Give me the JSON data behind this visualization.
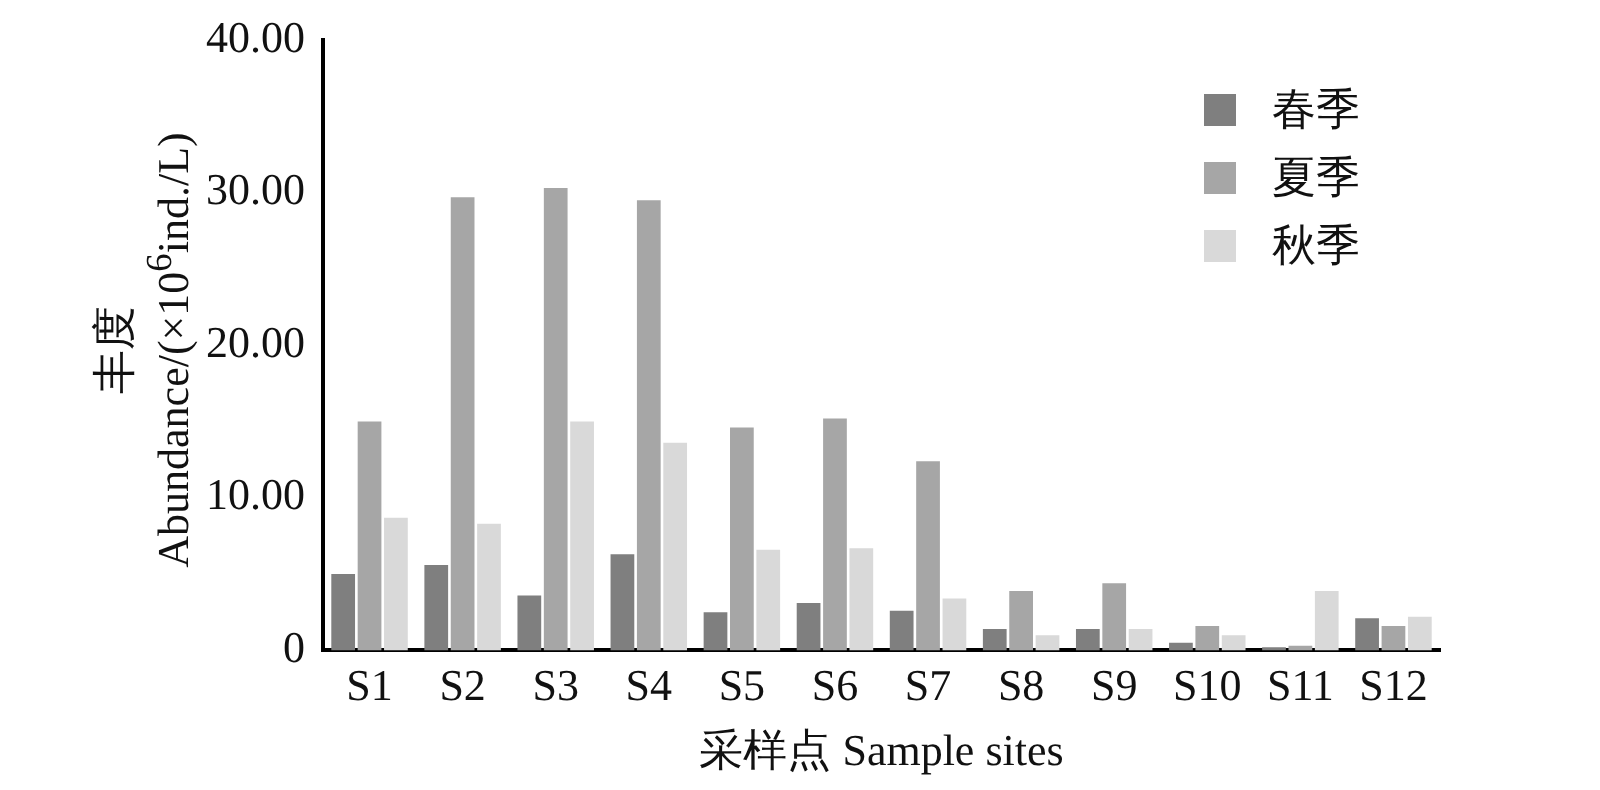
{
  "chart_data": {
    "type": "bar",
    "categories": [
      "S1",
      "S2",
      "S3",
      "S4",
      "S5",
      "S6",
      "S7",
      "S8",
      "S9",
      "S10",
      "S11",
      "S12"
    ],
    "xlabel": "采样点 Sample sites",
    "ylabel": "丰度 Abundance/(×10$^{6}$ind./L)",
    "ylim": [
      0,
      40
    ],
    "yticks": [
      0,
      {
        "value": 10,
        "label": "10.00"
      },
      {
        "value": 20,
        "label": "20.00"
      },
      {
        "value": 30,
        "label": "30.00"
      },
      {
        "value": 40,
        "label": "40.00"
      }
    ],
    "grid": false,
    "legend": "top right",
    "series": [
      {
        "name": "春季",
        "color": "#7f7f7f",
        "values": [
          5.0,
          5.6,
          3.6,
          6.3,
          2.5,
          3.1,
          2.6,
          1.4,
          1.4,
          0.5,
          0.2,
          2.1
        ]
      },
      {
        "name": "夏季",
        "color": "#a6a6a6",
        "values": [
          15.0,
          29.7,
          30.3,
          29.5,
          14.6,
          15.2,
          12.4,
          3.9,
          4.4,
          1.6,
          0.3,
          1.6
        ]
      },
      {
        "name": "秋季",
        "color": "#d9d9d9",
        "values": [
          8.7,
          8.3,
          15.0,
          13.6,
          6.6,
          6.7,
          3.4,
          1.0,
          1.4,
          1.0,
          3.9,
          2.2
        ]
      }
    ]
  }
}
